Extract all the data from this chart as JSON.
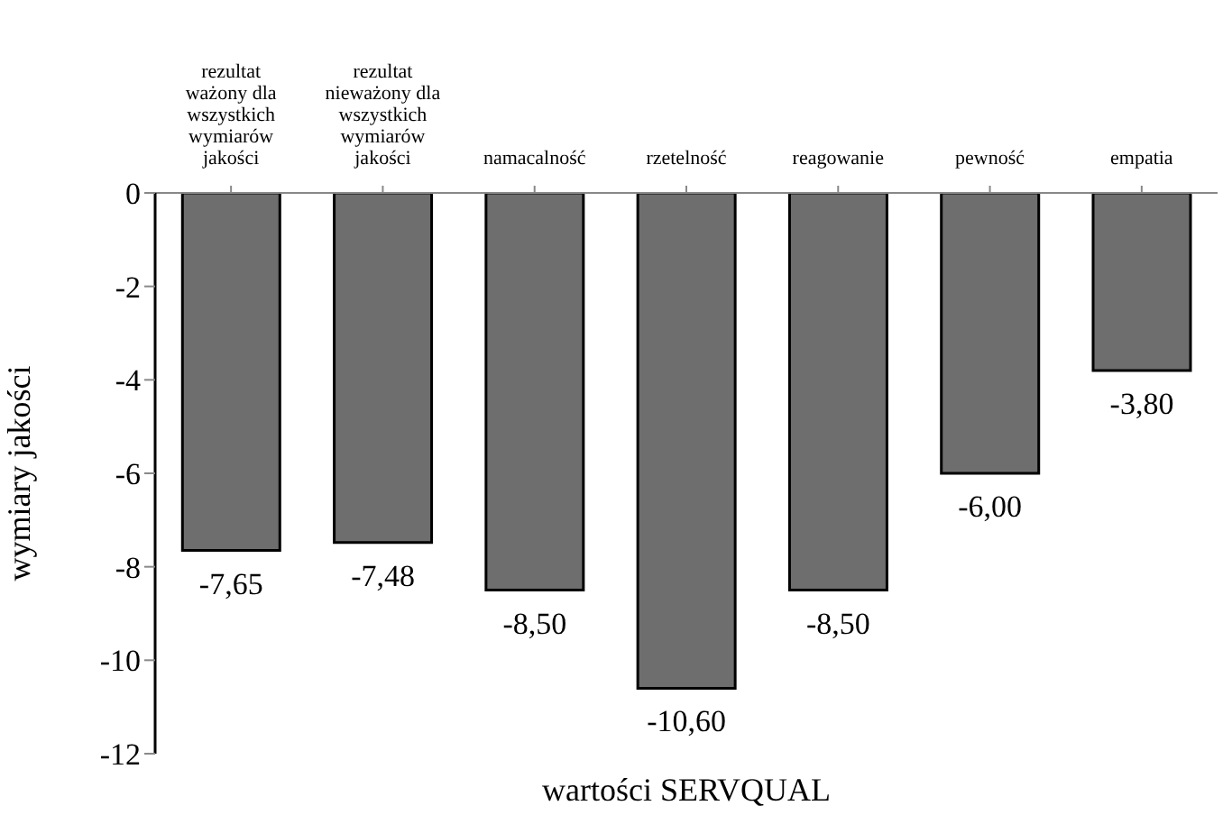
{
  "chart_data": {
    "type": "bar",
    "xlabel": "wartości SERVQUAL",
    "ylabel": "wymiary jakości",
    "categories": [
      "rezultat ważony dla wszystkich wymiarów jakości",
      "rezultat nieważony dla wszystkich wymiarów jakości",
      "namacalność",
      "rzetelność",
      "reagowanie",
      "pewność",
      "empatia"
    ],
    "values": [
      -7.65,
      -7.48,
      -8.5,
      -10.6,
      -8.5,
      -6.0,
      -3.8
    ],
    "value_labels": [
      "-7,65",
      "-7,48",
      "-8,50",
      "-10,60",
      "-8,50",
      "-6,00",
      "-3,80"
    ],
    "color": "#6e6e6e",
    "ylim": [
      -12,
      0
    ],
    "yticks": [
      -12,
      -10,
      -8,
      -6,
      -4,
      -2,
      0
    ],
    "grid": false,
    "legend": false
  }
}
